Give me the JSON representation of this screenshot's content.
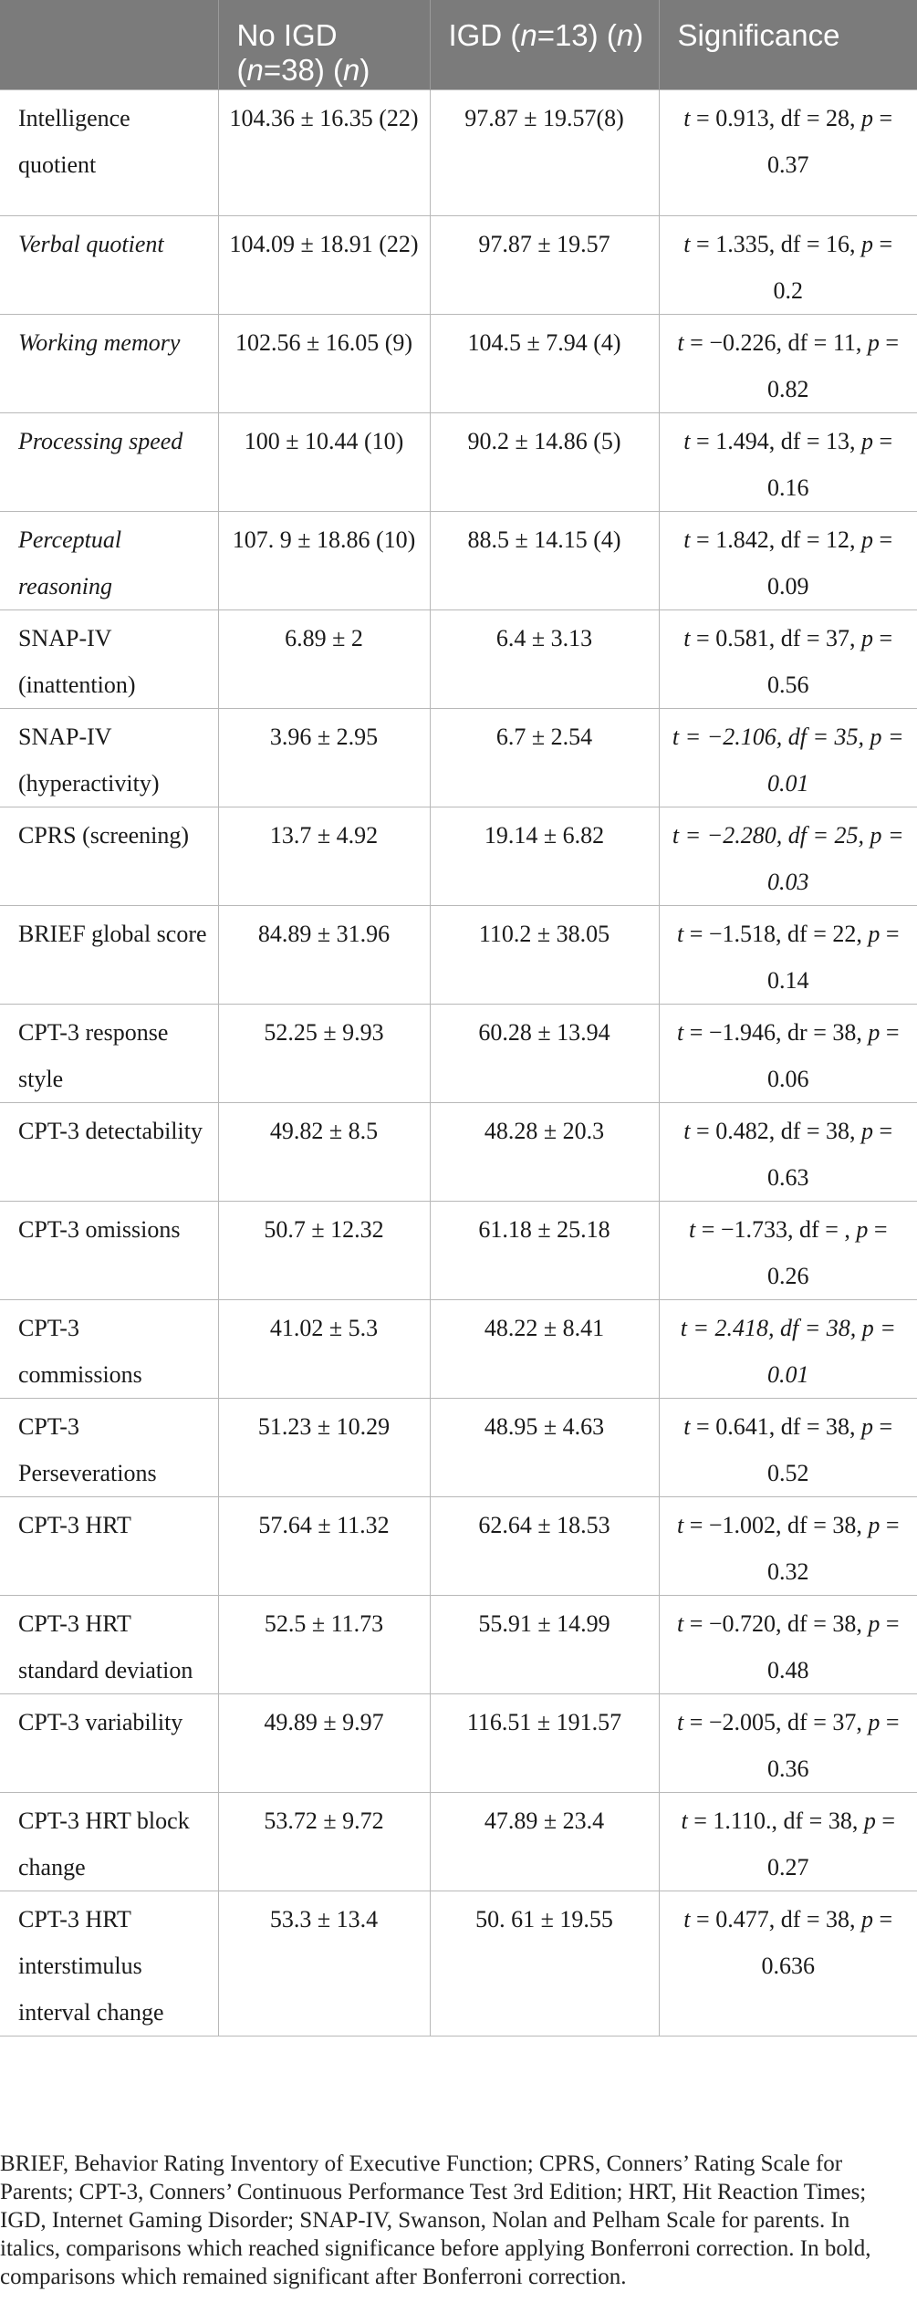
{
  "columns": [
    {
      "pre": "No IGD (",
      "n": "n",
      "post": "=38) (",
      "n2": "n",
      "end": ")"
    },
    {
      "pre": "IGD (",
      "n": "n",
      "post": "=13) (",
      "n2": "n",
      "end": ")"
    },
    {
      "label": "Significance"
    }
  ],
  "rows": [
    {
      "label": "Intelligence quotient",
      "italic": false,
      "no_igd": "104.36 ± 16.35 (22)",
      "igd": "97.87 ± 19.57(8)",
      "sig": {
        "t": "0.913",
        "df_label": "df",
        "df": "28",
        "p": "0.37"
      },
      "sig_italic": false
    },
    {
      "label": "Verbal quotient",
      "italic": true,
      "no_igd": "104.09 ± 18.91 (22)",
      "igd": "97.87 ± 19.57",
      "sig": {
        "t": "1.335",
        "df_label": "df",
        "df": "16",
        "p": "0.2"
      },
      "sig_italic": false
    },
    {
      "label": "Working memory",
      "italic": true,
      "no_igd": "102.56 ± 16.05 (9)",
      "igd": "104.5 ± 7.94 (4)",
      "sig": {
        "t": "−0.226",
        "df_label": "df",
        "df": "11",
        "p": "0.82"
      },
      "sig_italic": false
    },
    {
      "label": "Processing speed",
      "italic": true,
      "no_igd": "100 ± 10.44 (10)",
      "igd": "90.2 ± 14.86 (5)",
      "sig": {
        "t": "1.494",
        "df_label": "df",
        "df": "13",
        "p": "0.16"
      },
      "sig_italic": false
    },
    {
      "label": "Perceptual reasoning",
      "italic": true,
      "no_igd": "107. 9 ± 18.86 (10)",
      "igd": "88.5 ± 14.15 (4)",
      "sig": {
        "t": "1.842",
        "df_label": "df",
        "df": "12",
        "p": "0.09"
      },
      "sig_italic": false
    },
    {
      "label": "SNAP-IV (inattention)",
      "italic": false,
      "no_igd": "6.89 ± 2",
      "igd": "6.4 ± 3.13",
      "sig": {
        "t": "0.581",
        "df_label": "df",
        "df": "37",
        "p": "0.56"
      },
      "sig_italic": false
    },
    {
      "label": "SNAP-IV (hyperactivity)",
      "italic": false,
      "no_igd": "3.96 ± 2.95",
      "igd": "6.7 ± 2.54",
      "sig": {
        "t": "−2.106",
        "df_label": "df",
        "df": "35",
        "p": "0.01"
      },
      "sig_italic": true
    },
    {
      "label": "CPRS (screening)",
      "italic": false,
      "no_igd": "13.7 ± 4.92",
      "igd": "19.14 ± 6.82",
      "sig": {
        "t": "−2.280",
        "df_label": "df",
        "df": "25",
        "p": "0.03"
      },
      "sig_italic": true
    },
    {
      "label": "BRIEF global score",
      "italic": false,
      "no_igd": "84.89 ± 31.96",
      "igd": "110.2 ± 38.05",
      "sig": {
        "t": "−1.518",
        "df_label": "df",
        "df": "22",
        "p": "0.14"
      },
      "sig_italic": false
    },
    {
      "label": "CPT-3 response style",
      "italic": false,
      "no_igd": "52.25 ± 9.93",
      "igd": "60.28 ± 13.94",
      "sig": {
        "t": "−1.946",
        "df_label": "dr",
        "df": "38",
        "p": "0.06"
      },
      "sig_italic": false
    },
    {
      "label": "CPT-3 detectability",
      "italic": false,
      "no_igd": "49.82 ± 8.5",
      "igd": "48.28 ± 20.3",
      "sig": {
        "t": "0.482",
        "df_label": "df",
        "df": "38",
        "p": "0.63"
      },
      "sig_italic": false
    },
    {
      "label": "CPT-3 omissions",
      "italic": false,
      "no_igd": "50.7 ± 12.32",
      "igd": "61.18 ± 25.18",
      "sig": {
        "t": "−1.733",
        "df_label": "df",
        "df": "",
        "p": "0.26"
      },
      "sig_italic": false
    },
    {
      "label": "CPT-3 commissions",
      "italic": false,
      "no_igd": "41.02 ± 5.3",
      "igd": "48.22 ± 8.41",
      "sig": {
        "t": "2.418",
        "df_label": "df",
        "df": "38",
        "p": "0.01"
      },
      "sig_italic": true
    },
    {
      "label": "CPT-3 Perseverations",
      "italic": false,
      "no_igd": "51.23 ± 10.29",
      "igd": "48.95 ± 4.63",
      "sig": {
        "t": "0.641",
        "df_label": "df",
        "df": "38",
        "p": "0.52"
      },
      "sig_italic": false
    },
    {
      "label": "CPT-3 HRT",
      "italic": false,
      "no_igd": "57.64 ± 11.32",
      "igd": "62.64 ± 18.53",
      "sig": {
        "t": "−1.002",
        "df_label": "df",
        "df": "38",
        "p": "0.32"
      },
      "sig_italic": false
    },
    {
      "label": "CPT-3 HRT standard deviation",
      "italic": false,
      "no_igd": "52.5 ± 11.73",
      "igd": "55.91 ± 14.99",
      "sig": {
        "t": "−0.720",
        "df_label": "df",
        "df": "38",
        "p": "0.48"
      },
      "sig_italic": false
    },
    {
      "label": "CPT-3 variability",
      "italic": false,
      "no_igd": "49.89 ± 9.97",
      "igd": "116.51 ± 191.57",
      "sig": {
        "t": "−2.005",
        "df_label": "df",
        "df": "37",
        "p": "0.36"
      },
      "sig_italic": false
    },
    {
      "label": "CPT-3 HRT block change",
      "italic": false,
      "no_igd": "53.72 ± 9.72",
      "igd": "47.89 ± 23.4",
      "sig": {
        "t": "1.110.",
        "df_label": "df",
        "df": "38",
        "p": "0.27"
      },
      "sig_italic": false
    },
    {
      "label": "CPT-3 HRT interstimulus interval change",
      "italic": false,
      "no_igd": "53.3 ± 13.4",
      "igd": "50. 61 ± 19.55",
      "sig": {
        "t": "0.477",
        "df_label": "df",
        "df": "38",
        "p": "0.636"
      },
      "sig_italic": false
    }
  ],
  "footnote": "BRIEF, Behavior Rating Inventory of Executive Function; CPRS, Conners’ Rating Scale for Parents; CPT-3, Conners’ Continuous Performance Test 3rd Edition; HRT, Hit Reaction Times; IGD, Internet Gaming Disorder; SNAP-IV, Swanson, Nolan and Pelham Scale for parents. In italics, comparisons which reached significance before applying Bonferroni correction. In bold, comparisons which remained significant after Bonferroni correction."
}
